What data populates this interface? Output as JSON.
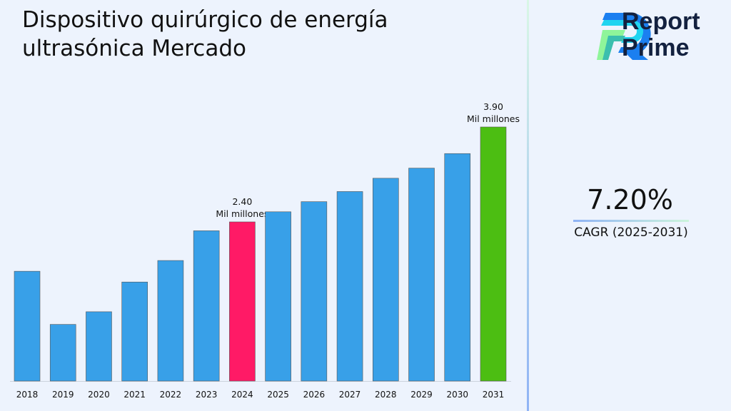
{
  "title": "Dispositivo quirúrgico de energía ultrasónica Mercado",
  "logo": {
    "line1": "Report",
    "line2": "Prime"
  },
  "cagr": {
    "value": "7.20%",
    "label": "CAGR (2025-2031)"
  },
  "colors": {
    "default_bar": "#38a0e8",
    "highlight_2024": "#ff1a66",
    "highlight_2031": "#4cbe12"
  },
  "chart_data": {
    "type": "bar",
    "categories": [
      "2018",
      "2019",
      "2020",
      "2021",
      "2022",
      "2023",
      "2024",
      "2025",
      "2026",
      "2027",
      "2028",
      "2029",
      "2030",
      "2031"
    ],
    "values": [
      1.62,
      0.78,
      0.98,
      1.45,
      1.79,
      2.26,
      2.4,
      2.56,
      2.72,
      2.88,
      3.09,
      3.25,
      3.48,
      3.9
    ],
    "data_labels": [
      {
        "category": "2024",
        "value": "2.40",
        "unit": "Mil millones"
      },
      {
        "category": "2031",
        "value": "3.90",
        "unit": "Mil millones"
      }
    ],
    "title": "Dispositivo quirúrgico de energía ultrasónica Mercado",
    "xlabel": "",
    "ylabel": "",
    "grid": false,
    "legend": "none"
  }
}
